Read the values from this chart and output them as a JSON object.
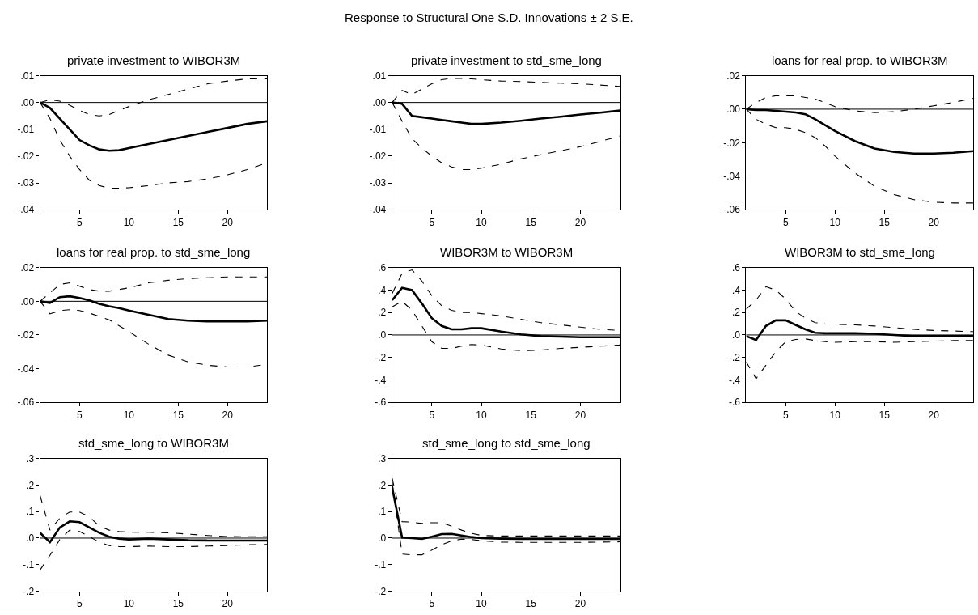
{
  "chart_data": [
    {
      "type": "line",
      "title": "private investment to WIBOR3M",
      "annotations": [
        "Response to Structural One S.D. Innovations ± 2 S.E."
      ],
      "x": [
        1,
        2,
        3,
        4,
        5,
        6,
        7,
        8,
        9,
        10,
        12,
        14,
        16,
        18,
        20,
        22,
        24
      ],
      "xlim": [
        1,
        24
      ],
      "xticks": [
        5,
        10,
        15,
        20
      ],
      "ylim": [
        -0.04,
        0.01
      ],
      "yticks": [
        {
          "value": 0.01,
          "label": ".01"
        },
        {
          "value": 0,
          "label": ".00"
        },
        {
          "value": -0.01,
          "label": "-.01"
        },
        {
          "value": -0.02,
          "label": "-.02"
        },
        {
          "value": -0.03,
          "label": "-.03"
        },
        {
          "value": -0.04,
          "label": "-.04"
        }
      ],
      "ref_lines": [
        {
          "axis": "y",
          "value": 0,
          "color": "#000000"
        }
      ],
      "series": [
        {
          "color": "#000000",
          "line_style": "solid",
          "values": [
            0,
            -0.002,
            -0.006,
            -0.01,
            -0.014,
            -0.016,
            -0.0175,
            -0.018,
            -0.0178,
            -0.017,
            -0.0155,
            -0.014,
            -0.0125,
            -0.011,
            -0.0095,
            -0.008,
            -0.007
          ]
        },
        {
          "color": "#000000",
          "line_style": "dashed",
          "values": [
            0,
            0.001,
            0.0005,
            -0.001,
            -0.003,
            -0.0045,
            -0.005,
            -0.0045,
            -0.003,
            -0.0015,
            0.001,
            0.003,
            0.005,
            0.007,
            0.008,
            0.0088,
            0.0088
          ]
        },
        {
          "color": "#000000",
          "line_style": "dashed",
          "values": [
            0,
            -0.006,
            -0.014,
            -0.02,
            -0.025,
            -0.029,
            -0.031,
            -0.032,
            -0.032,
            -0.0318,
            -0.031,
            -0.03,
            -0.0295,
            -0.0285,
            -0.027,
            -0.025,
            -0.0225
          ]
        }
      ]
    },
    {
      "type": "line",
      "title": "private investment to std_sme_long",
      "x": [
        1,
        2,
        3,
        4,
        5,
        6,
        7,
        8,
        9,
        10,
        12,
        14,
        16,
        18,
        20,
        22,
        24
      ],
      "xlim": [
        1,
        24
      ],
      "xticks": [
        5,
        10,
        15,
        20
      ],
      "ylim": [
        -0.04,
        0.01
      ],
      "yticks": [
        {
          "value": 0.01,
          "label": ".01"
        },
        {
          "value": 0,
          "label": ".00"
        },
        {
          "value": -0.01,
          "label": "-.01"
        },
        {
          "value": -0.02,
          "label": "-.02"
        },
        {
          "value": -0.03,
          "label": "-.03"
        },
        {
          "value": -0.04,
          "label": "-.04"
        }
      ],
      "ref_lines": [
        {
          "axis": "y",
          "value": 0,
          "color": "#000000"
        }
      ],
      "series": [
        {
          "color": "#000000",
          "line_style": "solid",
          "values": [
            0,
            -0.0005,
            -0.005,
            -0.0055,
            -0.006,
            -0.0065,
            -0.007,
            -0.0075,
            -0.008,
            -0.008,
            -0.0075,
            -0.0068,
            -0.006,
            -0.0053,
            -0.0045,
            -0.0038,
            -0.003
          ]
        },
        {
          "color": "#000000",
          "line_style": "dashed",
          "values": [
            0,
            0.0045,
            0.003,
            0.005,
            0.007,
            0.0085,
            0.009,
            0.009,
            0.0088,
            0.0085,
            0.008,
            0.0078,
            0.0075,
            0.0072,
            0.007,
            0.0065,
            0.006
          ]
        },
        {
          "color": "#000000",
          "line_style": "dashed",
          "values": [
            0,
            -0.007,
            -0.0135,
            -0.017,
            -0.02,
            -0.0225,
            -0.024,
            -0.025,
            -0.025,
            -0.0245,
            -0.023,
            -0.021,
            -0.0195,
            -0.018,
            -0.0165,
            -0.0145,
            -0.0125
          ]
        }
      ]
    },
    {
      "type": "line",
      "title": "loans for real prop. to WIBOR3M",
      "x": [
        1,
        2,
        3,
        4,
        5,
        6,
        7,
        8,
        9,
        10,
        12,
        14,
        16,
        18,
        20,
        22,
        24
      ],
      "xlim": [
        1,
        24
      ],
      "xticks": [
        5,
        10,
        15,
        20
      ],
      "ylim": [
        -0.06,
        0.02
      ],
      "yticks": [
        {
          "value": 0.02,
          "label": ".02"
        },
        {
          "value": 0,
          "label": ".00"
        },
        {
          "value": -0.02,
          "label": "-.02"
        },
        {
          "value": -0.04,
          "label": "-.04"
        },
        {
          "value": -0.06,
          "label": "-.06"
        }
      ],
      "ref_lines": [
        {
          "axis": "y",
          "value": 0,
          "color": "#000000"
        }
      ],
      "series": [
        {
          "color": "#000000",
          "line_style": "solid",
          "values": [
            0,
            -0.0005,
            -0.0005,
            -0.001,
            -0.0015,
            -0.002,
            -0.003,
            -0.006,
            -0.0095,
            -0.013,
            -0.019,
            -0.0235,
            -0.0255,
            -0.0265,
            -0.0265,
            -0.026,
            -0.025
          ]
        },
        {
          "color": "#000000",
          "line_style": "dashed",
          "values": [
            0,
            0.004,
            0.007,
            0.008,
            0.008,
            0.008,
            0.007,
            0.006,
            0.004,
            0.0015,
            -0.001,
            -0.002,
            -0.0015,
            0,
            0.002,
            0.004,
            0.0065
          ]
        },
        {
          "color": "#000000",
          "line_style": "dashed",
          "values": [
            0,
            -0.006,
            -0.009,
            -0.011,
            -0.011,
            -0.012,
            -0.014,
            -0.017,
            -0.022,
            -0.028,
            -0.038,
            -0.046,
            -0.051,
            -0.054,
            -0.0555,
            -0.056,
            -0.056
          ]
        }
      ]
    },
    {
      "type": "line",
      "title": "loans for real prop. to std_sme_long",
      "x": [
        1,
        2,
        3,
        4,
        5,
        6,
        7,
        8,
        9,
        10,
        12,
        14,
        16,
        18,
        20,
        22,
        24
      ],
      "xlim": [
        1,
        24
      ],
      "xticks": [
        5,
        10,
        15,
        20
      ],
      "ylim": [
        -0.06,
        0.02
      ],
      "yticks": [
        {
          "value": 0.02,
          "label": ".02"
        },
        {
          "value": 0,
          "label": ".00"
        },
        {
          "value": -0.02,
          "label": "-.02"
        },
        {
          "value": -0.04,
          "label": "-.04"
        },
        {
          "value": -0.06,
          "label": "-.06"
        }
      ],
      "ref_lines": [
        {
          "axis": "y",
          "value": 0,
          "color": "#000000"
        }
      ],
      "series": [
        {
          "color": "#000000",
          "line_style": "solid",
          "values": [
            0,
            -0.001,
            0.0025,
            0.003,
            0.002,
            0.0005,
            -0.0015,
            -0.003,
            -0.004,
            -0.0055,
            -0.008,
            -0.0105,
            -0.0115,
            -0.012,
            -0.012,
            -0.012,
            -0.0115
          ]
        },
        {
          "color": "#000000",
          "line_style": "dashed",
          "values": [
            0,
            0.005,
            0.01,
            0.011,
            0.009,
            0.007,
            0.006,
            0.006,
            0.007,
            0.008,
            0.011,
            0.0125,
            0.0135,
            0.014,
            0.0145,
            0.0145,
            0.0145
          ]
        },
        {
          "color": "#000000",
          "line_style": "dashed",
          "values": [
            0,
            -0.0075,
            -0.0055,
            -0.005,
            -0.0055,
            -0.007,
            -0.009,
            -0.011,
            -0.0145,
            -0.018,
            -0.0255,
            -0.032,
            -0.036,
            -0.038,
            -0.039,
            -0.039,
            -0.0375
          ]
        }
      ]
    },
    {
      "type": "line",
      "title": "WIBOR3M to WIBOR3M",
      "x": [
        1,
        2,
        3,
        4,
        5,
        6,
        7,
        8,
        9,
        10,
        12,
        14,
        16,
        18,
        20,
        22,
        24
      ],
      "xlim": [
        1,
        24
      ],
      "xticks": [
        5,
        10,
        15,
        20
      ],
      "ylim": [
        -0.6,
        0.6
      ],
      "yticks": [
        {
          "value": 0.6,
          "label": ".6"
        },
        {
          "value": 0.4,
          "label": ".4"
        },
        {
          "value": 0.2,
          "label": ".2"
        },
        {
          "value": 0,
          "label": ".0"
        },
        {
          "value": -0.2,
          "label": "-.2"
        },
        {
          "value": -0.4,
          "label": "-.4"
        },
        {
          "value": -0.6,
          "label": "-.6"
        }
      ],
      "ref_lines": [
        {
          "axis": "y",
          "value": 0,
          "color": "#000000"
        }
      ],
      "series": [
        {
          "color": "#000000",
          "line_style": "solid",
          "values": [
            0.31,
            0.42,
            0.4,
            0.28,
            0.15,
            0.08,
            0.05,
            0.05,
            0.06,
            0.06,
            0.03,
            0.005,
            -0.01,
            -0.015,
            -0.02,
            -0.02,
            -0.02
          ]
        },
        {
          "color": "#000000",
          "line_style": "dashed",
          "values": [
            0.37,
            0.55,
            0.58,
            0.48,
            0.35,
            0.26,
            0.22,
            0.2,
            0.2,
            0.19,
            0.17,
            0.14,
            0.11,
            0.09,
            0.07,
            0.05,
            0.04
          ]
        },
        {
          "color": "#000000",
          "line_style": "dashed",
          "values": [
            0.25,
            0.3,
            0.22,
            0.08,
            -0.06,
            -0.12,
            -0.12,
            -0.1,
            -0.085,
            -0.09,
            -0.125,
            -0.14,
            -0.135,
            -0.12,
            -0.11,
            -0.1,
            -0.09
          ]
        }
      ]
    },
    {
      "type": "line",
      "title": "WIBOR3M to std_sme_long",
      "x": [
        1,
        2,
        3,
        4,
        5,
        6,
        7,
        8,
        9,
        10,
        12,
        14,
        16,
        18,
        20,
        22,
        24
      ],
      "xlim": [
        1,
        24
      ],
      "xticks": [
        5,
        10,
        15,
        20
      ],
      "ylim": [
        -0.6,
        0.6
      ],
      "yticks": [
        {
          "value": 0.6,
          "label": ".6"
        },
        {
          "value": 0.4,
          "label": ".4"
        },
        {
          "value": 0.2,
          "label": ".2"
        },
        {
          "value": 0,
          "label": ".0"
        },
        {
          "value": -0.2,
          "label": "-.2"
        },
        {
          "value": -0.4,
          "label": "-.4"
        },
        {
          "value": -0.6,
          "label": "-.6"
        }
      ],
      "ref_lines": [
        {
          "axis": "y",
          "value": 0,
          "color": "#000000"
        }
      ],
      "series": [
        {
          "color": "#000000",
          "line_style": "solid",
          "values": [
            -0.01,
            -0.045,
            0.08,
            0.13,
            0.13,
            0.09,
            0.05,
            0.02,
            0.015,
            0.015,
            0.015,
            0.01,
            0,
            -0.01,
            -0.01,
            -0.01,
            -0.01
          ]
        },
        {
          "color": "#000000",
          "line_style": "dashed",
          "values": [
            0.23,
            0.31,
            0.43,
            0.4,
            0.32,
            0.21,
            0.15,
            0.11,
            0.1,
            0.095,
            0.09,
            0.08,
            0.065,
            0.05,
            0.04,
            0.035,
            0.03
          ]
        },
        {
          "color": "#000000",
          "line_style": "dashed",
          "values": [
            -0.24,
            -0.39,
            -0.27,
            -0.15,
            -0.06,
            -0.04,
            -0.035,
            -0.05,
            -0.06,
            -0.065,
            -0.06,
            -0.06,
            -0.065,
            -0.06,
            -0.055,
            -0.05,
            -0.05
          ]
        }
      ]
    },
    {
      "type": "line",
      "title": "std_sme_long to WIBOR3M",
      "x": [
        1,
        2,
        3,
        4,
        5,
        6,
        7,
        8,
        9,
        10,
        12,
        14,
        16,
        18,
        20,
        22,
        24
      ],
      "xlim": [
        1,
        24
      ],
      "xticks": [
        5,
        10,
        15,
        20
      ],
      "ylim": [
        -0.2,
        0.3
      ],
      "yticks": [
        {
          "value": 0.3,
          "label": ".3"
        },
        {
          "value": 0.2,
          "label": ".2"
        },
        {
          "value": 0.1,
          "label": ".1"
        },
        {
          "value": 0,
          "label": ".0"
        },
        {
          "value": -0.1,
          "label": "-.1"
        },
        {
          "value": -0.2,
          "label": "-.2"
        }
      ],
      "ref_lines": [
        {
          "axis": "y",
          "value": 0,
          "color": "#000000"
        }
      ],
      "series": [
        {
          "color": "#000000",
          "line_style": "solid",
          "values": [
            0.02,
            -0.015,
            0.04,
            0.063,
            0.06,
            0.04,
            0.02,
            0.005,
            -0.002,
            -0.005,
            -0.002,
            -0.005,
            -0.008,
            -0.009,
            -0.009,
            -0.009,
            -0.009
          ]
        },
        {
          "color": "#000000",
          "line_style": "dashed",
          "values": [
            0.16,
            0.03,
            0.075,
            0.098,
            0.098,
            0.08,
            0.045,
            0.03,
            0.025,
            0.022,
            0.022,
            0.02,
            0.015,
            0.01,
            0.006,
            0.005,
            0.005
          ]
        },
        {
          "color": "#000000",
          "line_style": "dashed",
          "values": [
            -0.12,
            -0.065,
            -0.005,
            0.03,
            0.025,
            0.005,
            -0.015,
            -0.028,
            -0.032,
            -0.032,
            -0.03,
            -0.032,
            -0.032,
            -0.03,
            -0.028,
            -0.025,
            -0.024
          ]
        }
      ]
    },
    {
      "type": "line",
      "title": "std_sme_long to std_sme_long",
      "x": [
        1,
        2,
        3,
        4,
        5,
        6,
        7,
        8,
        9,
        10,
        12,
        14,
        16,
        18,
        20,
        22,
        24
      ],
      "xlim": [
        1,
        24
      ],
      "xticks": [
        5,
        10,
        15,
        20
      ],
      "ylim": [
        -0.2,
        0.3
      ],
      "yticks": [
        {
          "value": 0.3,
          "label": ".3"
        },
        {
          "value": 0.2,
          "label": ".2"
        },
        {
          "value": 0.1,
          "label": ".1"
        },
        {
          "value": 0,
          "label": ".0"
        },
        {
          "value": -0.1,
          "label": "-.1"
        },
        {
          "value": -0.2,
          "label": "-.2"
        }
      ],
      "ref_lines": [
        {
          "axis": "y",
          "value": 0,
          "color": "#000000"
        }
      ],
      "series": [
        {
          "color": "#000000",
          "line_style": "solid",
          "values": [
            0.19,
            0.002,
            0,
            -0.003,
            0.005,
            0.015,
            0.016,
            0.01,
            0.004,
            0,
            -0.002,
            -0.003,
            -0.003,
            -0.003,
            -0.003,
            -0.003,
            -0.003
          ]
        },
        {
          "color": "#000000",
          "line_style": "dashed",
          "values": [
            0.225,
            0.062,
            0.06,
            0.055,
            0.058,
            0.058,
            0.045,
            0.03,
            0.018,
            0.01,
            0.008,
            0.008,
            0.008,
            0.008,
            0.008,
            0.008,
            0.008
          ]
        },
        {
          "color": "#000000",
          "line_style": "dashed",
          "values": [
            0.21,
            -0.06,
            -0.063,
            -0.063,
            -0.045,
            -0.025,
            -0.01,
            -0.004,
            -0.005,
            -0.01,
            -0.015,
            -0.016,
            -0.016,
            -0.016,
            -0.016,
            -0.015,
            -0.014
          ]
        }
      ]
    }
  ]
}
